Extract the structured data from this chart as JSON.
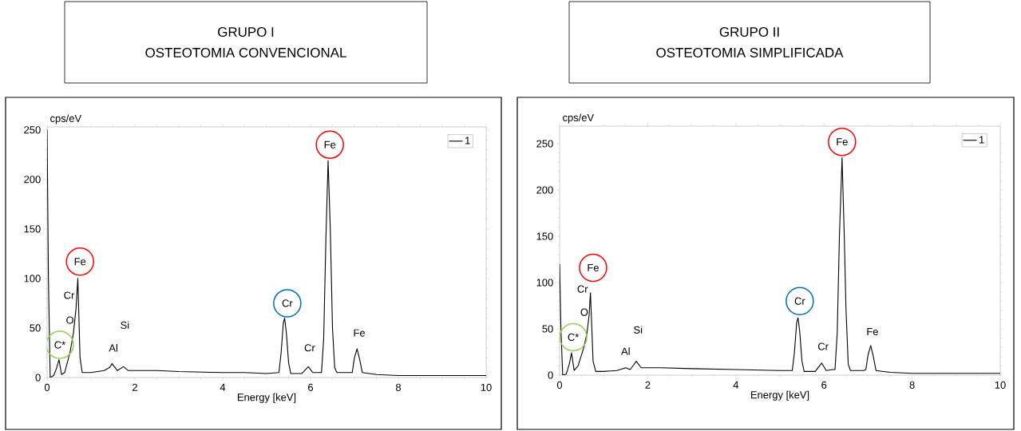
{
  "chart_data": [
    {
      "type": "line",
      "title": "GRUPO I",
      "subtitle": "OSTEOTOMIA CONVENCIONAL",
      "xlabel": "Energy [keV]",
      "ylabel": "cps/eV",
      "xlim": [
        0,
        10
      ],
      "ylim": [
        0,
        253
      ],
      "xticks": [
        0,
        2,
        4,
        6,
        8,
        10
      ],
      "yticks": [
        0,
        50,
        100,
        150,
        200,
        250
      ],
      "legend": "top right",
      "series": [
        {
          "name": "1",
          "color": "#000000",
          "x": [
            0,
            0.03,
            0.07,
            0.15,
            0.22,
            0.27,
            0.33,
            0.4,
            0.52,
            0.6,
            0.66,
            0.7,
            0.75,
            0.8,
            1.0,
            1.3,
            1.42,
            1.48,
            1.6,
            1.74,
            1.85,
            2.5,
            3,
            4,
            4.5,
            5,
            5.28,
            5.33,
            5.38,
            5.41,
            5.45,
            5.5,
            5.55,
            5.8,
            5.95,
            6.05,
            6.2,
            6.25,
            6.3,
            6.35,
            6.4,
            6.45,
            6.5,
            6.55,
            6.6,
            6.9,
            6.95,
            7.0,
            7.06,
            7.12,
            7.18,
            7.5,
            8,
            9,
            10
          ],
          "values": [
            250,
            100,
            0,
            2,
            10,
            18,
            3,
            5,
            25,
            45,
            70,
            100,
            20,
            5,
            5,
            7,
            10,
            14,
            7,
            11,
            7,
            7,
            6,
            5,
            5,
            4,
            5,
            25,
            55,
            60,
            45,
            15,
            4,
            4,
            11,
            5,
            5,
            5,
            40,
            140,
            219,
            150,
            50,
            10,
            5,
            5,
            5,
            20,
            29,
            18,
            5,
            3,
            2,
            2,
            2
          ]
        }
      ],
      "annotations": [
        "Fe",
        "Cr",
        "O",
        "C*",
        "Al",
        "Si",
        "Cr",
        "Fe",
        "Cr",
        "Fe"
      ]
    },
    {
      "type": "line",
      "title": "GRUPO II",
      "subtitle": "OSTEOTOMIA SIMPLIFICADA",
      "xlabel": "Energy [keV]",
      "ylabel": "cps/eV",
      "xlim": [
        0,
        10
      ],
      "ylim": [
        0,
        269
      ],
      "xticks": [
        0,
        2,
        4,
        6,
        8,
        10
      ],
      "yticks": [
        0,
        50,
        100,
        150,
        200,
        250
      ],
      "legend": "top right",
      "series": [
        {
          "name": "1",
          "color": "#000000",
          "x": [
            0,
            0.03,
            0.07,
            0.15,
            0.22,
            0.27,
            0.33,
            0.42,
            0.55,
            0.62,
            0.67,
            0.7,
            0.76,
            0.82,
            1.0,
            1.3,
            1.5,
            1.6,
            1.68,
            1.74,
            1.85,
            2.3,
            3,
            4,
            5,
            5.28,
            5.33,
            5.38,
            5.41,
            5.45,
            5.5,
            5.55,
            5.8,
            5.95,
            6.05,
            6.2,
            6.25,
            6.3,
            6.35,
            6.41,
            6.46,
            6.5,
            6.55,
            6.6,
            6.9,
            6.95,
            7.0,
            7.06,
            7.12,
            7.18,
            7.5,
            8,
            9,
            10
          ],
          "values": [
            120,
            50,
            0,
            1,
            12,
            24,
            5,
            10,
            30,
            45,
            65,
            89,
            15,
            4,
            4,
            5,
            8,
            6,
            11,
            15,
            8,
            8,
            7,
            6,
            5,
            5,
            25,
            57,
            62,
            47,
            15,
            4,
            4,
            13,
            5,
            6,
            6,
            45,
            150,
            235,
            150,
            70,
            12,
            5,
            5,
            6,
            22,
            32,
            20,
            5,
            3,
            2,
            2,
            2
          ]
        }
      ],
      "annotations": [
        "Fe",
        "Cr",
        "O",
        "C*",
        "Al",
        "Si",
        "Cr",
        "Fe",
        "Cr",
        "Fe"
      ]
    }
  ]
}
